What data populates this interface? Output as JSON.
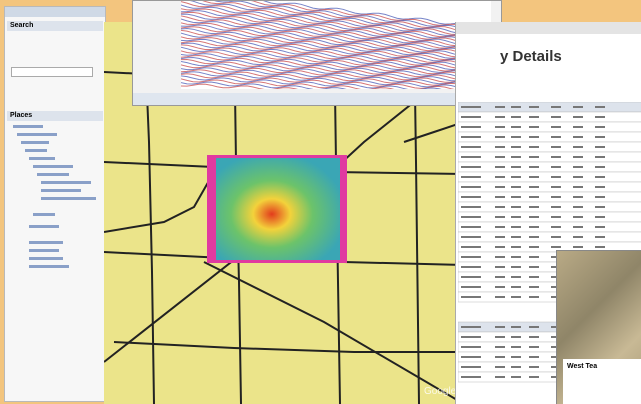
{
  "left_panel": {
    "search_header": "Search",
    "places_header": "Places"
  },
  "survey_window": {
    "title": "y Details"
  },
  "map": {
    "attribution": "Google"
  },
  "terrain_window": {
    "title": "West Tea"
  }
}
